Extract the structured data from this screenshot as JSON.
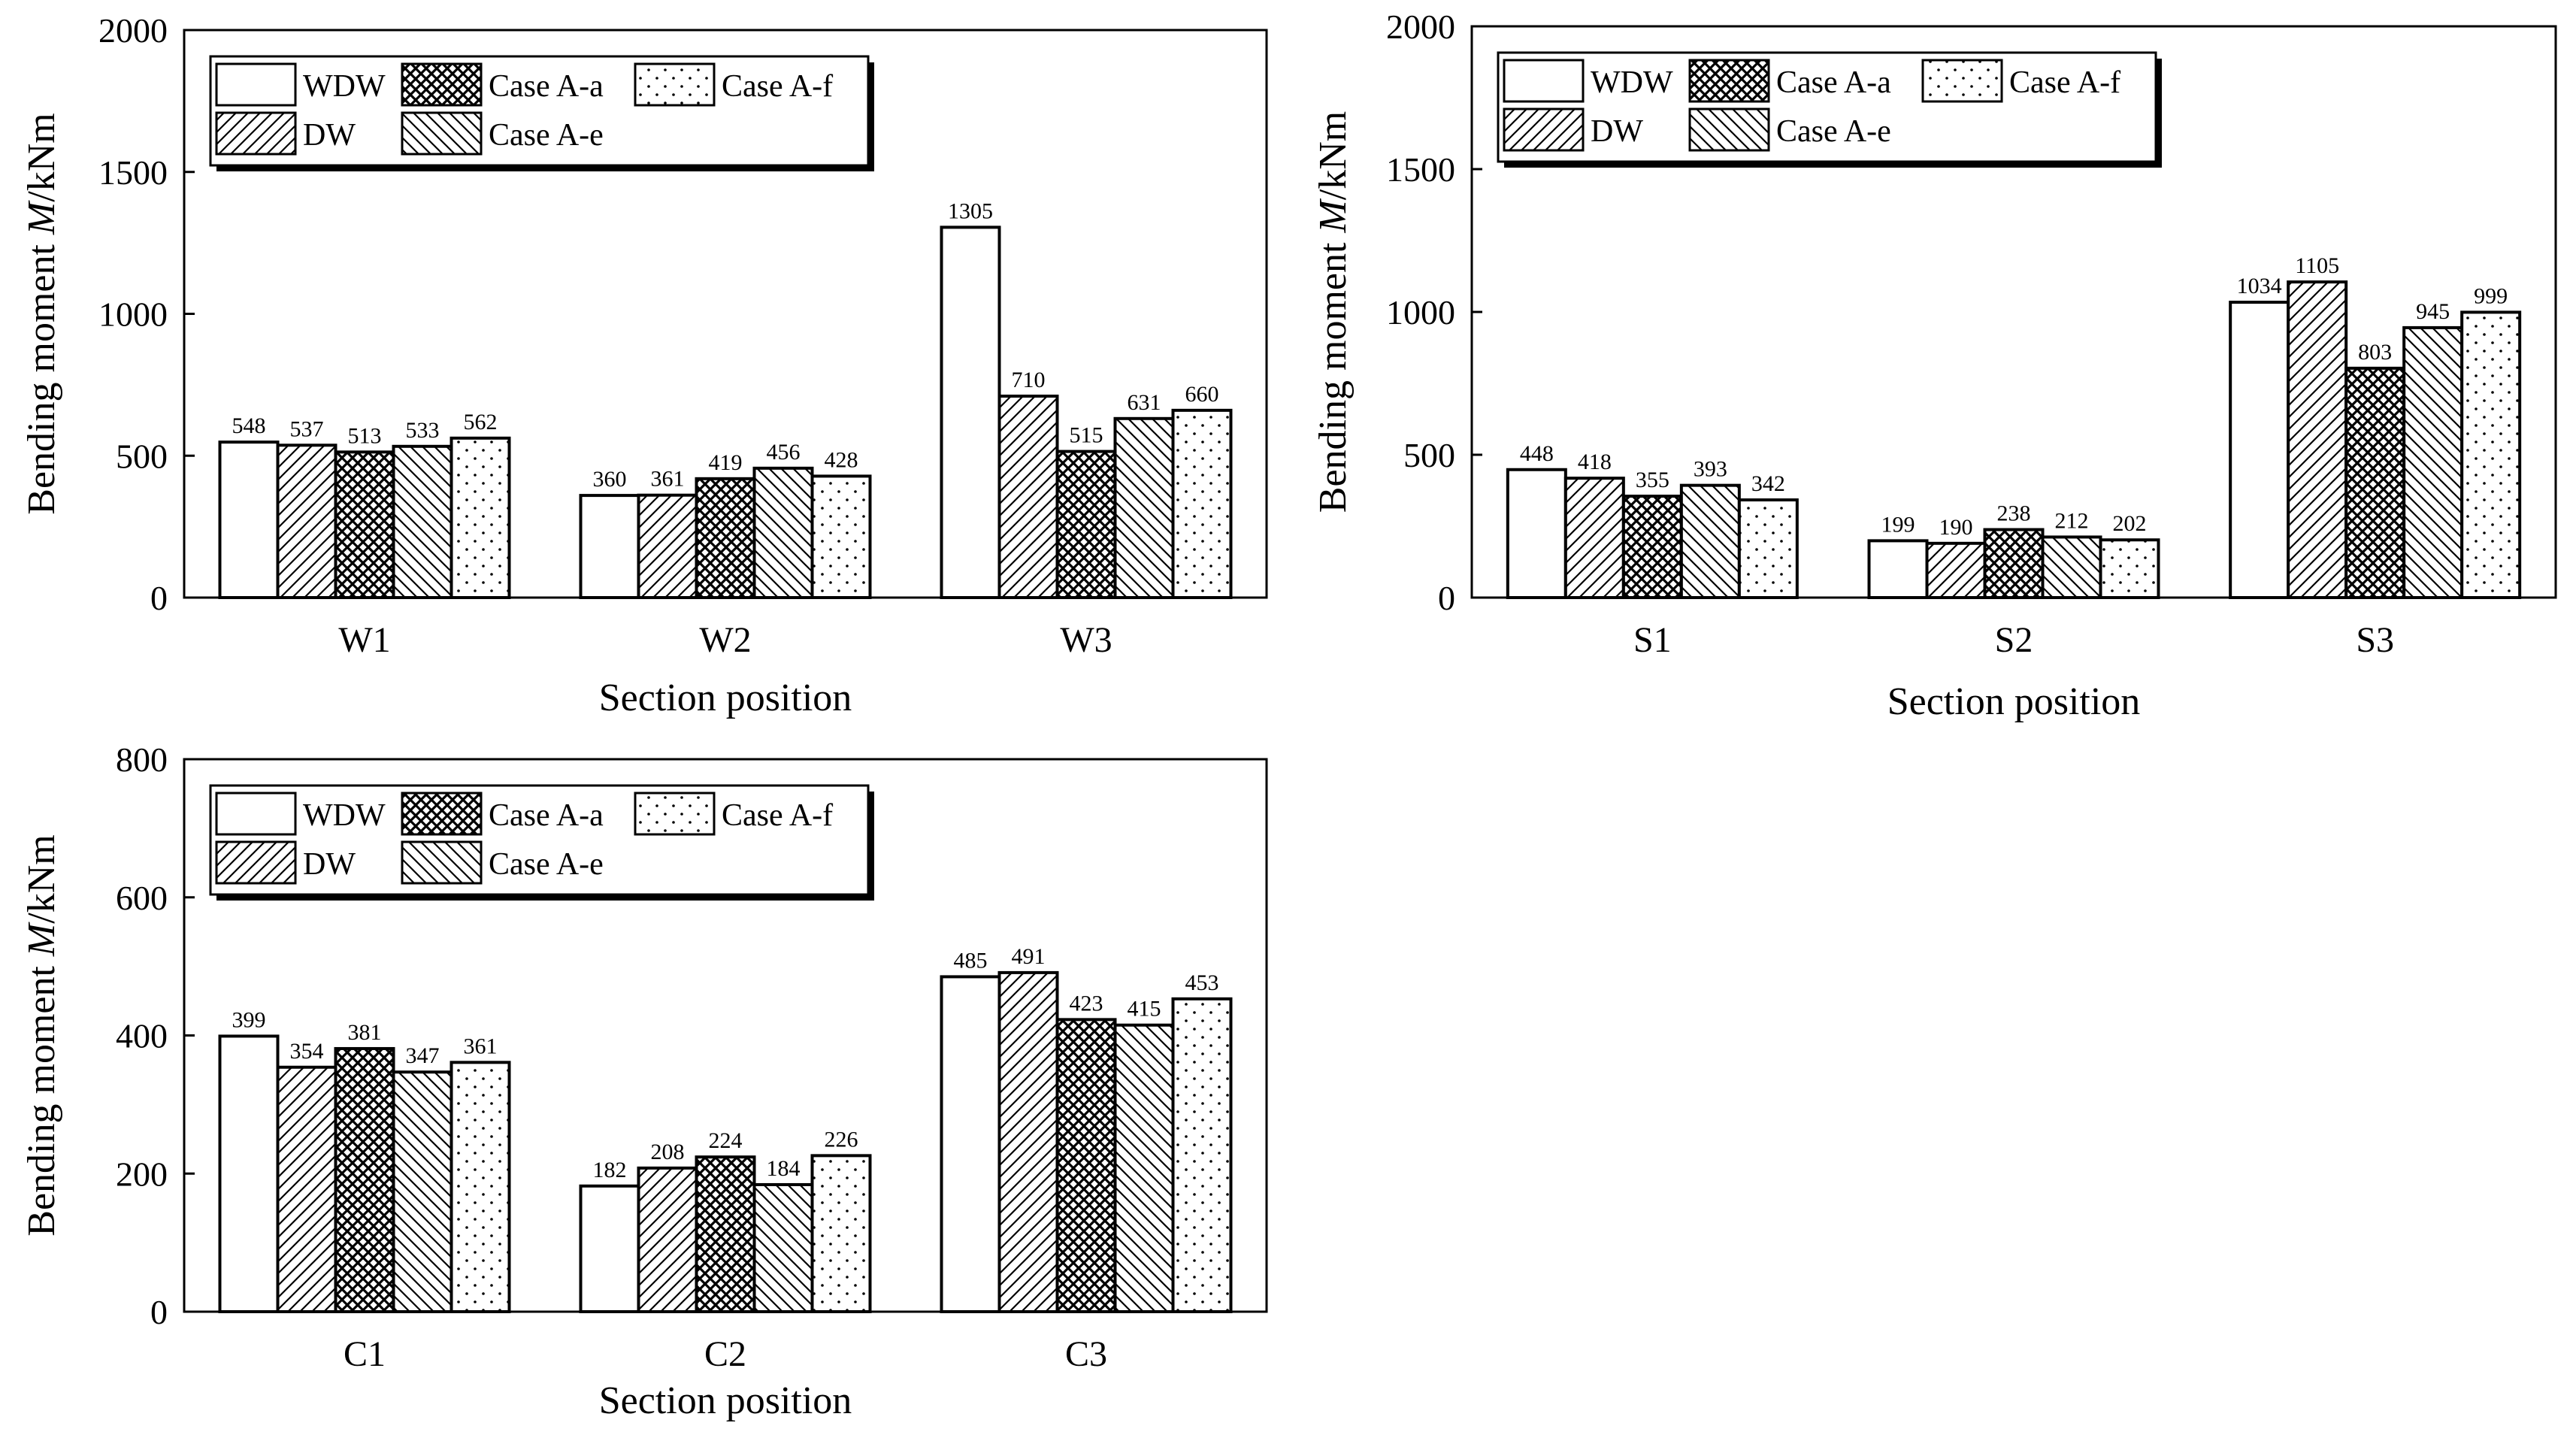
{
  "legend_labels": [
    "WDW",
    "DW",
    "Case A-a",
    "Case A-e",
    "Case A-f"
  ],
  "chart_data": [
    {
      "type": "bar",
      "ylabel_prefix": "Bending moment ",
      "ylabel_var": "M",
      "ylabel_unit": "/kNm",
      "xlabel": "Section position",
      "ylim": [
        0,
        2000
      ],
      "yticks": [
        0,
        500,
        1000,
        1500,
        2000
      ],
      "categories": [
        "W1",
        "W2",
        "W3"
      ],
      "series": [
        {
          "name": "WDW",
          "values": [
            548,
            360,
            1305
          ]
        },
        {
          "name": "DW",
          "values": [
            537,
            361,
            710
          ]
        },
        {
          "name": "Case A-a",
          "values": [
            513,
            419,
            515
          ]
        },
        {
          "name": "Case A-e",
          "values": [
            533,
            456,
            631
          ]
        },
        {
          "name": "Case A-f",
          "values": [
            562,
            428,
            660
          ]
        }
      ]
    },
    {
      "type": "bar",
      "ylabel_prefix": "Bending moment ",
      "ylabel_var": "M",
      "ylabel_unit": "/kNm",
      "xlabel": "Section position",
      "ylim": [
        0,
        2000
      ],
      "yticks": [
        0,
        500,
        1000,
        1500,
        2000
      ],
      "categories": [
        "S1",
        "S2",
        "S3"
      ],
      "series": [
        {
          "name": "WDW",
          "values": [
            448,
            199,
            1034
          ]
        },
        {
          "name": "DW",
          "values": [
            418,
            190,
            1105
          ]
        },
        {
          "name": "Case A-a",
          "values": [
            355,
            238,
            803
          ]
        },
        {
          "name": "Case A-e",
          "values": [
            393,
            212,
            945
          ]
        },
        {
          "name": "Case A-f",
          "values": [
            342,
            202,
            999
          ]
        }
      ]
    },
    {
      "type": "bar",
      "ylabel_prefix": "Bending moment ",
      "ylabel_var": "M",
      "ylabel_unit": "/kNm",
      "xlabel": "Section position",
      "ylim": [
        0,
        800
      ],
      "yticks": [
        0,
        200,
        400,
        600,
        800
      ],
      "categories": [
        "C1",
        "C2",
        "C3"
      ],
      "series": [
        {
          "name": "WDW",
          "values": [
            399,
            182,
            485
          ]
        },
        {
          "name": "DW",
          "values": [
            354,
            208,
            491
          ]
        },
        {
          "name": "Case A-a",
          "values": [
            381,
            224,
            423
          ]
        },
        {
          "name": "Case A-e",
          "values": [
            347,
            184,
            415
          ]
        },
        {
          "name": "Case A-f",
          "values": [
            361,
            226,
            453
          ]
        }
      ]
    }
  ]
}
